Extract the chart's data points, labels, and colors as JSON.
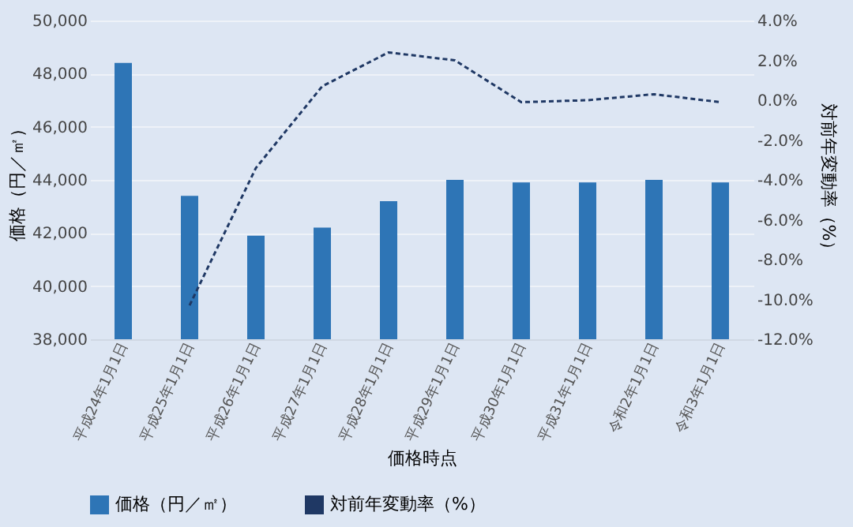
{
  "chart_data": {
    "type": "bar",
    "xlabel": "価格時点",
    "ylabel": "価格（円／㎡）",
    "y2label": "対前年変動率（%）",
    "categories": [
      "平成24年1月1日",
      "平成25年1月1日",
      "平成26年1月1日",
      "平成27年1月1日",
      "平成28年1月1日",
      "平成29年1月1日",
      "平成30年1月1日",
      "平成31年1月1日",
      "令和2年1月1日",
      "令和3年1月1日"
    ],
    "series": [
      {
        "name": "価格（円／㎡）",
        "color": "#2e75b6",
        "values": [
          48400,
          43400,
          41900,
          42200,
          43200,
          44000,
          43900,
          43900,
          44000,
          43900
        ]
      },
      {
        "name": "対前年変動率（%）",
        "type": "line",
        "axis": "y2",
        "color": "#1f3864",
        "line_style": "dashed",
        "values": [
          null,
          -10.3,
          -3.4,
          0.7,
          2.4,
          2.0,
          -0.1,
          0.0,
          0.3,
          -0.1
        ]
      }
    ],
    "ylim": [
      38000,
      50000
    ],
    "yticks": [
      {
        "value": 38000,
        "label": "38,000"
      },
      {
        "value": 40000,
        "label": "40,000"
      },
      {
        "value": 42000,
        "label": "42,000"
      },
      {
        "value": 44000,
        "label": "44,000"
      },
      {
        "value": 46000,
        "label": "46,000"
      },
      {
        "value": 48000,
        "label": "48,000"
      },
      {
        "value": 50000,
        "label": "50,000"
      }
    ],
    "y2lim": [
      -12,
      4
    ],
    "y2ticks": [
      {
        "value": -12,
        "label": "-12.0%"
      },
      {
        "value": -10,
        "label": "-10.0%"
      },
      {
        "value": -8,
        "label": "-8.0%"
      },
      {
        "value": -6,
        "label": "-6.0%"
      },
      {
        "value": -4,
        "label": "-4.0%"
      },
      {
        "value": -2,
        "label": "-2.0%"
      },
      {
        "value": 0,
        "label": "0.0%"
      },
      {
        "value": 2,
        "label": "2.0%"
      },
      {
        "value": 4,
        "label": "4.0%"
      }
    ],
    "grid": "y",
    "legend": "bottom"
  }
}
